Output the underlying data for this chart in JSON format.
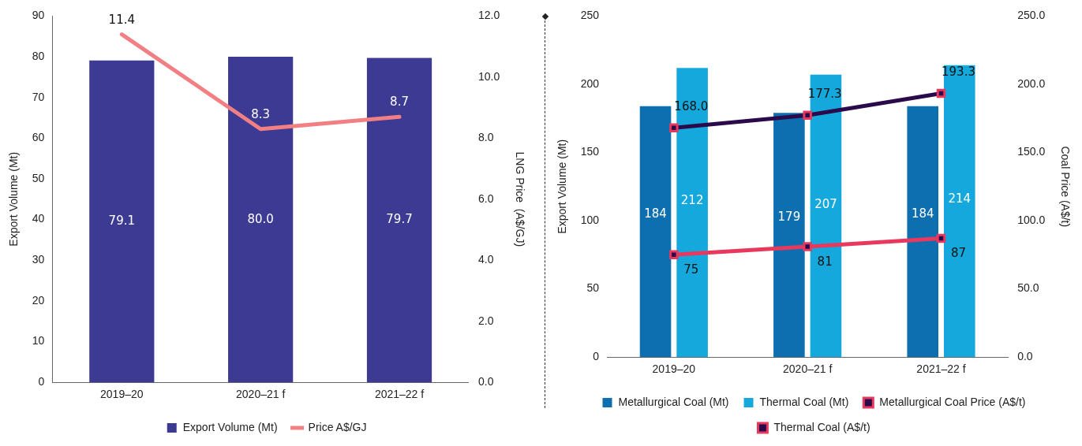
{
  "chart_data": [
    {
      "type": "bar",
      "categories": [
        "2019–20",
        "2020–21 f",
        "2021–22 f"
      ],
      "ylabel": "Export Volume (Mt)",
      "y2label": "LNG Price  (A$/GJ)",
      "series": [
        {
          "name": "Export Volume (Mt)",
          "color": "#3d3a94",
          "values": [
            79.1,
            80.0,
            79.7
          ],
          "value_labels": [
            "79.1",
            "80.0",
            "79.7"
          ]
        },
        {
          "type": "line",
          "axis": "y2",
          "name": "Price A$/GJ",
          "color": "#f27f83",
          "values": [
            11.4,
            8.3,
            8.7
          ],
          "value_labels": [
            "11.4",
            "8.3",
            "8.7"
          ],
          "marker": "none"
        }
      ],
      "ylim": [
        0,
        90
      ],
      "yticks": [
        0,
        10,
        20,
        30,
        40,
        50,
        60,
        70,
        80,
        90
      ],
      "y2lim": [
        0,
        12
      ],
      "y2ticks": [
        {
          "value": 0,
          "label": "0.0"
        },
        {
          "value": 2,
          "label": "2.0"
        },
        {
          "value": 4,
          "label": "4.0"
        },
        {
          "value": 6,
          "label": "6.0"
        },
        {
          "value": 8,
          "label": "8.0"
        },
        {
          "value": 10,
          "label": "10.0"
        },
        {
          "value": 12,
          "label": "12.0"
        }
      ],
      "grid": false,
      "legend": "bottom"
    },
    {
      "type": "bar",
      "categories": [
        "2019–20",
        "2020–21 f",
        "2021–22 f"
      ],
      "ylabel": "Export Volume (Mt)",
      "y2label": "Coal Price (A$/t)",
      "series": [
        {
          "name": "Metallurgical Coal (Mt)",
          "color": "#0e6fb0",
          "values": [
            184,
            179,
            184
          ],
          "value_labels": [
            "184",
            "179",
            "184"
          ]
        },
        {
          "name": "Thermal Coal (Mt)",
          "color": "#14a8dc",
          "values": [
            212,
            207,
            214
          ],
          "value_labels": [
            "212",
            "207",
            "214"
          ]
        },
        {
          "type": "line",
          "axis": "y2",
          "name": "Metallurgical Coal Price (A$/t)",
          "color": "#2a0a4a",
          "values": [
            168.0,
            177.3,
            193.3
          ],
          "value_labels": [
            "168.0",
            "177.3",
            "193.3"
          ],
          "marker": "square"
        },
        {
          "type": "line",
          "axis": "y2",
          "name": "Thermal Coal (A$/t)",
          "color": "#e8385e",
          "values": [
            75,
            81,
            87
          ],
          "value_labels": [
            "75",
            "81",
            "87"
          ],
          "marker": "square"
        }
      ],
      "ylim": [
        0,
        250
      ],
      "yticks": [
        0,
        50,
        100,
        150,
        200,
        250
      ],
      "y2lim": [
        0,
        250
      ],
      "y2ticks": [
        {
          "value": 0,
          "label": "0.0"
        },
        {
          "value": 50,
          "label": "50.0"
        },
        {
          "value": 100,
          "label": "100.0"
        },
        {
          "value": 150,
          "label": "150.0"
        },
        {
          "value": 200,
          "label": "200.0"
        },
        {
          "value": 250,
          "label": "250.0"
        }
      ],
      "grid": false,
      "legend": "bottom"
    }
  ]
}
